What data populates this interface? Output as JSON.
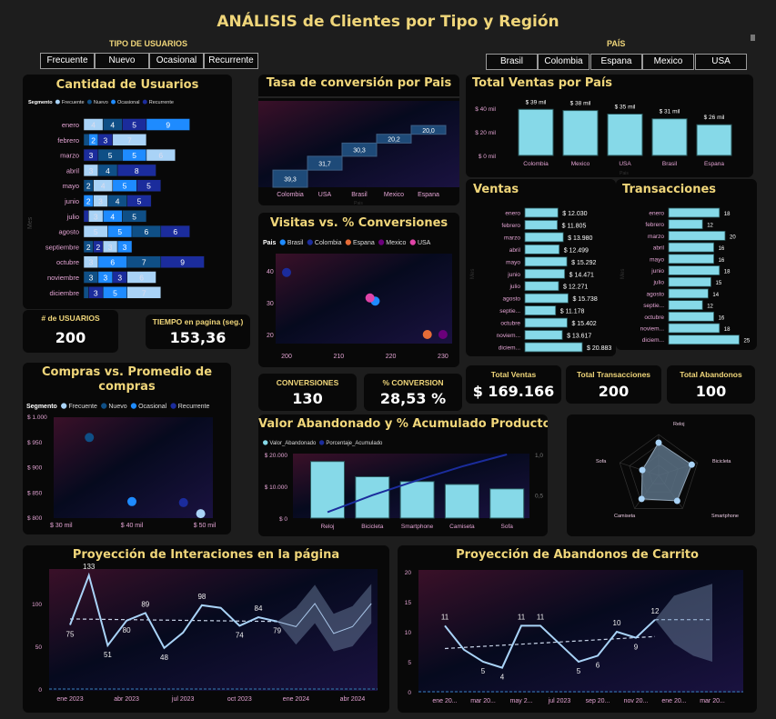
{
  "title": "ANÁLISIS de Clientes por Tipo y Región",
  "filters": {
    "tipo_label": "TIPO DE USUARIOS",
    "tipo_options": [
      "Frecuente",
      "Nuevo",
      "Ocasional",
      "Recurrente"
    ],
    "pais_label": "PAÍS",
    "pais_options": [
      "Brasil",
      "Colombia",
      "Espana",
      "Mexico",
      "USA"
    ]
  },
  "colors": {
    "title": "#f0d67a",
    "axis_text": "#e4a4d4",
    "frecuente": "#a9d3f7",
    "nuevo": "#0f4f86",
    "ocasional": "#1e8bff",
    "recurrente": "#1b2c9c",
    "bar": "#86d9e8"
  },
  "usuarios": {
    "title": "Cantidad de Usuarios",
    "legend_label": "Segmento",
    "axis_label": "Mes",
    "segments": [
      "Frecuente",
      "Nuevo",
      "Ocasional",
      "Recurrente"
    ],
    "rows": [
      {
        "month": "enero",
        "values": [
          [
            "Frecuente",
            4
          ],
          [
            "Nuevo",
            4
          ],
          [
            "Recurrente",
            5
          ],
          [
            "Ocasional",
            9
          ]
        ]
      },
      {
        "month": "febrero",
        "values": [
          [
            "Nuevo",
            1
          ],
          [
            "Ocasional",
            2
          ],
          [
            "Recurrente",
            3
          ],
          [
            "Frecuente",
            7
          ]
        ]
      },
      {
        "month": "marzo",
        "values": [
          [
            "Recurrente",
            3
          ],
          [
            "Nuevo",
            5
          ],
          [
            "Ocasional",
            5
          ],
          [
            "Frecuente",
            6
          ]
        ]
      },
      {
        "month": "abril",
        "values": [
          [
            "Frecuente",
            3
          ],
          [
            "Nuevo",
            4
          ],
          [
            "Recurrente",
            8
          ]
        ]
      },
      {
        "month": "mayo",
        "values": [
          [
            "Nuevo",
            2
          ],
          [
            "Frecuente",
            4
          ],
          [
            "Ocasional",
            5
          ],
          [
            "Recurrente",
            5
          ]
        ]
      },
      {
        "month": "junio",
        "values": [
          [
            "Ocasional",
            2
          ],
          [
            "Frecuente",
            3
          ],
          [
            "Nuevo",
            4
          ],
          [
            "Recurrente",
            5
          ]
        ]
      },
      {
        "month": "julio",
        "values": [
          [
            "Recurrente",
            1
          ],
          [
            "Frecuente",
            3
          ],
          [
            "Ocasional",
            4
          ],
          [
            "Nuevo",
            5
          ]
        ]
      },
      {
        "month": "agosto",
        "values": [
          [
            "Frecuente",
            5
          ],
          [
            "Ocasional",
            5
          ],
          [
            "Nuevo",
            6
          ],
          [
            "Recurrente",
            6
          ]
        ]
      },
      {
        "month": "septiembre",
        "values": [
          [
            "Nuevo",
            2
          ],
          [
            "Recurrente",
            2
          ],
          [
            "Frecuente",
            3
          ],
          [
            "Ocasional",
            3
          ]
        ]
      },
      {
        "month": "octubre",
        "values": [
          [
            "Frecuente",
            3
          ],
          [
            "Ocasional",
            6
          ],
          [
            "Nuevo",
            7
          ],
          [
            "Recurrente",
            9
          ]
        ]
      },
      {
        "month": "noviembre",
        "values": [
          [
            "Nuevo",
            3
          ],
          [
            "Ocasional",
            3
          ],
          [
            "Recurrente",
            3
          ],
          [
            "Frecuente",
            6
          ]
        ]
      },
      {
        "month": "diciembre",
        "values": [
          [
            "Nuevo",
            1
          ],
          [
            "Recurrente",
            3
          ],
          [
            "Ocasional",
            5
          ],
          [
            "Frecuente",
            7
          ]
        ]
      }
    ]
  },
  "kpis": {
    "usuarios": {
      "label": "# de USUARIOS",
      "value": "200"
    },
    "tiempo": {
      "label": "TIEMPO en pagina (seg.)",
      "value": "153,36"
    },
    "conversiones": {
      "label": "CONVERSIONES",
      "value": "130"
    },
    "pct_conversion": {
      "label": "% CONVERSION",
      "value": "28,53 %"
    },
    "total_ventas": {
      "label": "Total Ventas",
      "value": "$ 169.166"
    },
    "total_transacciones": {
      "label": "Total Transacciones",
      "value": "200"
    },
    "total_abandonos": {
      "label": "Total Abandonos",
      "value": "100"
    }
  },
  "tasa": {
    "title": "Tasa de conversión por Pais",
    "axis_label": "Pais",
    "categories": [
      "Colombia",
      "USA",
      "Brasil",
      "Mexico",
      "Espana"
    ],
    "values": [
      39.3,
      31.7,
      30.3,
      20.2,
      20.0
    ],
    "labels": [
      "39,3",
      "31,7",
      "30,3",
      "20,2",
      "20,0"
    ]
  },
  "visitas": {
    "title": "Visitas vs. % Conversiones",
    "legend_label": "Pais",
    "points": [
      {
        "name": "Brasil",
        "x": 217,
        "y": 30.5,
        "color": "#1e8bff"
      },
      {
        "name": "Colombia",
        "x": 200,
        "y": 39.5,
        "color": "#1b2c9c"
      },
      {
        "name": "Espana",
        "x": 227,
        "y": 20,
        "color": "#e66c37"
      },
      {
        "name": "Mexico",
        "x": 230,
        "y": 20,
        "color": "#6b007b"
      },
      {
        "name": "USA",
        "x": 216,
        "y": 31.5,
        "color": "#e044a7"
      }
    ],
    "xticks": [
      200,
      210,
      220,
      230
    ],
    "yticks": [
      20,
      30,
      40
    ]
  },
  "ventas_pais": {
    "title": "Total Ventas por País",
    "axis_label": "Pais",
    "categories": [
      "Colombia",
      "Mexico",
      "USA",
      "Brasil",
      "Espana"
    ],
    "values": [
      39,
      38,
      35,
      31,
      26
    ],
    "labels": [
      "$ 39 mil",
      "$ 38 mil",
      "$ 35 mil",
      "$ 31 mil",
      "$ 26 mil"
    ],
    "yticks": [
      "$ 0 mil",
      "$ 20 mil",
      "$ 40 mil"
    ],
    "ytick_values": [
      0,
      20,
      40
    ]
  },
  "ventas": {
    "title": "Ventas",
    "axis_label": "Mes",
    "months": [
      "enero",
      "febrero",
      "marzo",
      "abril",
      "mayo",
      "junio",
      "julio",
      "agosto",
      "septie...",
      "octubre",
      "noviem...",
      "diciem..."
    ],
    "values": [
      12030,
      11805,
      13980,
      12499,
      15292,
      14471,
      12271,
      15738,
      11178,
      15402,
      13617,
      20883
    ],
    "labels": [
      "$ 12.030",
      "$ 11.805",
      "$ 13.980",
      "$ 12.499",
      "$ 15.292",
      "$ 14.471",
      "$ 12.271",
      "$ 15.738",
      "$ 11.178",
      "$ 15.402",
      "$ 13.617",
      "$ 20.883"
    ]
  },
  "transacciones": {
    "title": "Transacciones",
    "axis_label": "Mes",
    "months": [
      "enero",
      "febrero",
      "marzo",
      "abril",
      "mayo",
      "junio",
      "julio",
      "agosto",
      "septie...",
      "octubre",
      "noviem...",
      "diciem..."
    ],
    "values": [
      18,
      12,
      20,
      16,
      16,
      18,
      15,
      14,
      12,
      16,
      18,
      25
    ]
  },
  "compras": {
    "title": "Compras vs. Promedio de compras",
    "legend_label": "Segmento",
    "points": [
      {
        "name": "Frecuente",
        "x": 48.4,
        "y": 807,
        "color": "#a9d3f7"
      },
      {
        "name": "Nuevo",
        "x": 34.8,
        "y": 958,
        "color": "#0f4f86"
      },
      {
        "name": "Ocasional",
        "x": 40,
        "y": 831,
        "color": "#1e8bff"
      },
      {
        "name": "Recurrente",
        "x": 46.3,
        "y": 829,
        "color": "#1b2c9c"
      }
    ],
    "xticks": [
      30,
      40,
      50
    ],
    "xtick_labels": [
      "$ 30 mil",
      "$ 40 mil",
      "$ 50 mil"
    ],
    "yticks": [
      800,
      850,
      900,
      950,
      1000
    ],
    "ytick_labels": [
      "$ 800",
      "$ 850",
      "$ 900",
      "$ 950",
      "$ 1.000"
    ]
  },
  "abandonado": {
    "title": "Valor Abandonado y % Acumulado Producto",
    "legend": [
      "Valor_Abandonado",
      "Porcentaje_Acumulado"
    ],
    "categories": [
      "Reloj",
      "Bicicleta",
      "Smartphone",
      "Camiseta",
      "Sofa"
    ],
    "values": [
      17800,
      13000,
      11500,
      10600,
      9200
    ],
    "cumulative": [
      0.287,
      0.496,
      0.681,
      0.852,
      1.0
    ],
    "yticks": [
      "$ 0",
      "$ 10.000",
      "$ 20.000"
    ],
    "ytick_values": [
      0,
      10000,
      20000
    ],
    "y2ticks": [
      "0,5",
      "1,0"
    ],
    "y2tick_values": [
      0.5,
      1.0
    ]
  },
  "radar": {
    "categories": [
      "Reloj",
      "Bicicleta",
      "Smartphone",
      "Camiseta",
      "Sofa"
    ],
    "values": [
      0.8,
      0.85,
      0.77,
      0.71,
      0.42
    ]
  },
  "interacciones": {
    "title": "Proyección de Interaciones en la página",
    "actual": [
      75,
      133,
      51,
      80,
      89,
      48,
      66,
      98,
      95,
      74,
      84,
      79
    ],
    "labels": {
      "0": "75",
      "1": "133",
      "2": "51",
      "3": "80",
      "4": "89",
      "5": "48",
      "7": "98",
      "9": "74",
      "10": "84",
      "11": "79"
    },
    "forecast": [
      79,
      73,
      100,
      65,
      73,
      100
    ],
    "upper": [
      79,
      95,
      122,
      88,
      97,
      123
    ],
    "lower": [
      79,
      52,
      77,
      44,
      50,
      77
    ],
    "trend": [
      82,
      79
    ],
    "yticks": [
      0,
      50,
      100
    ],
    "xticks": [
      "ene 2023",
      "abr 2023",
      "jul 2023",
      "oct 2023",
      "ene 2024",
      "abr 2024"
    ]
  },
  "abandonos_carrito": {
    "title": "Proyección de Abandonos de Carrito",
    "actual": [
      11,
      7,
      5,
      4,
      11,
      11,
      8,
      5,
      6,
      10,
      9,
      12
    ],
    "labels": {
      "0": "11",
      "2": "5",
      "3": "4",
      "4": "11",
      "5": "11",
      "7": "5",
      "8": "6",
      "9": "10",
      "10": "9",
      "11": "12"
    },
    "forecast": [
      12,
      12,
      12,
      12
    ],
    "upper": [
      12,
      16,
      17,
      18
    ],
    "lower": [
      12,
      8,
      6,
      5
    ],
    "trend": [
      7.2,
      9.2
    ],
    "yticks": [
      0,
      5,
      10,
      15,
      20
    ],
    "xticks": [
      "ene 20...",
      "mar 20...",
      "may 2...",
      "jul 2023",
      "sep 20...",
      "nov 20...",
      "ene 20...",
      "mar 20..."
    ]
  }
}
